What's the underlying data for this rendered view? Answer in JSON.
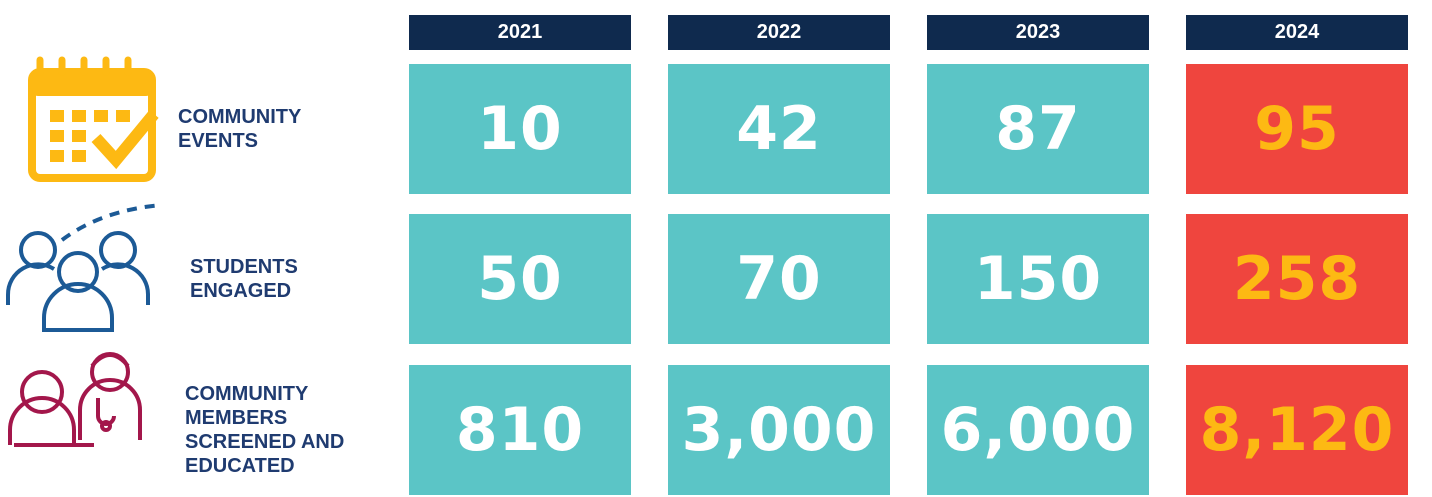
{
  "header": {
    "years": [
      "2021",
      "2022",
      "2023",
      "2024"
    ]
  },
  "rows": [
    {
      "label": [
        "COMMUNITY",
        "EVENTS"
      ],
      "values": [
        "10",
        "42",
        "87",
        "95"
      ]
    },
    {
      "label": [
        "STUDENTS",
        "ENGAGED"
      ],
      "values": [
        "50",
        "70",
        "150",
        "258"
      ]
    },
    {
      "label": [
        "COMMUNITY",
        "MEMBERS",
        "SCREENED AND",
        "EDUCATED"
      ],
      "values": [
        "810",
        "3,000",
        "6,000",
        "8,120"
      ]
    }
  ]
}
